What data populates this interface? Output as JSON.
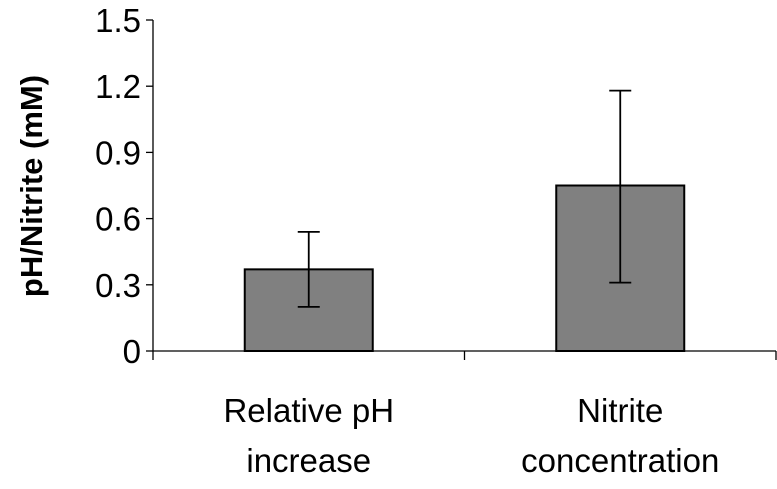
{
  "chart_data": {
    "type": "bar",
    "title": "",
    "ylabel": "pH/Nitrite (mM)",
    "xlabel": "",
    "categories": [
      [
        "Relative pH",
        "increase"
      ],
      [
        "Nitrite",
        "concentration"
      ]
    ],
    "values": [
      0.37,
      0.75
    ],
    "error_low": [
      0.2,
      0.31
    ],
    "error_high": [
      0.54,
      1.18
    ],
    "ylim": [
      0,
      1.5
    ],
    "yticks": [
      {
        "value": 0,
        "label": "0"
      },
      {
        "value": 0.3,
        "label": "0.3"
      },
      {
        "value": 0.6,
        "label": "0.6"
      },
      {
        "value": 0.9,
        "label": "0.9"
      },
      {
        "value": 1.2,
        "label": "1.2"
      },
      {
        "value": 1.5,
        "label": "1.5"
      }
    ],
    "grid": false,
    "legend": "none",
    "colors": {
      "bar_fill": "#808080",
      "bar_stroke": "#000000",
      "axis": "#000000"
    }
  }
}
